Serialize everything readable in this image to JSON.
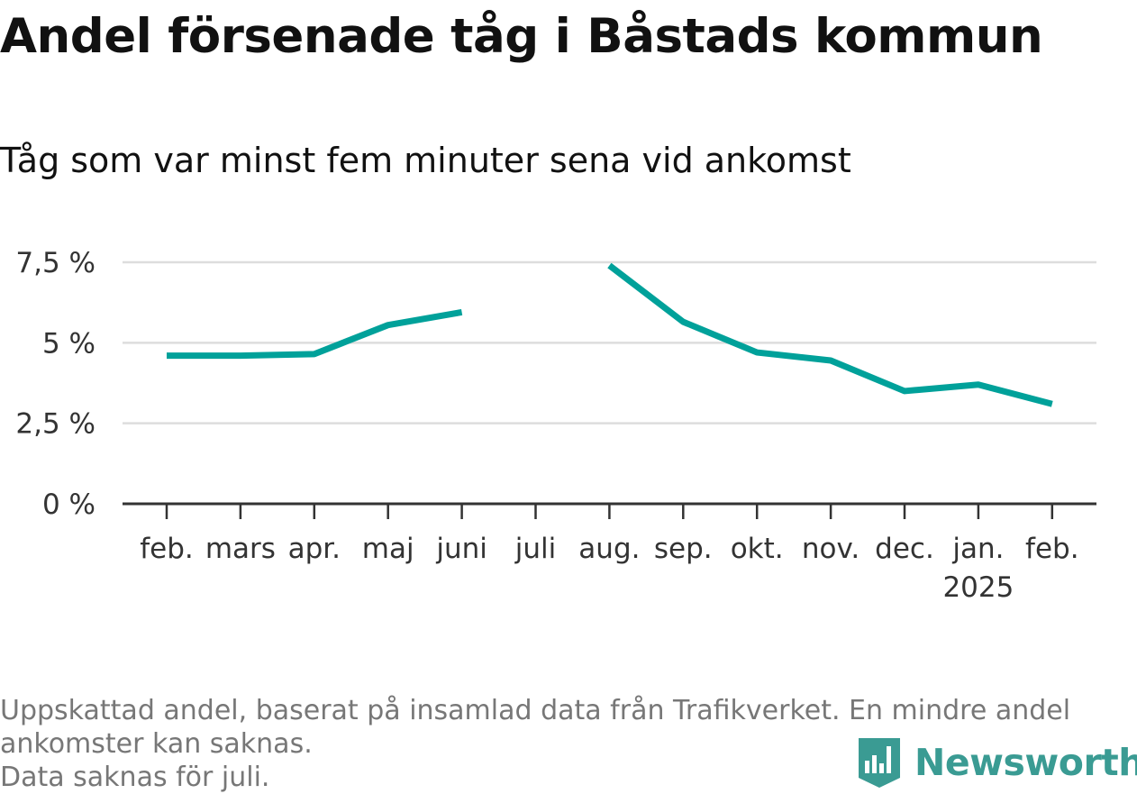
{
  "title": "Andel försenade tåg i Båstads kommun",
  "subtitle": "Tåg som var minst fem minuter sena vid ankomst",
  "footnote": {
    "line1": "Uppskattad andel, baserat på insamlad data från Trafikverket. En mindre andel ankomster kan saknas.",
    "line2": "Data saknas för juli."
  },
  "brand": {
    "name": "Newsworthy",
    "color": "#3a9b93"
  },
  "chart_data": {
    "type": "line",
    "categories": [
      "feb.",
      "mars",
      "apr.",
      "maj",
      "juni",
      "juli",
      "aug.",
      "sep.",
      "okt.",
      "nov.",
      "dec.",
      "jan.",
      "feb."
    ],
    "year_labels": [
      "",
      "",
      "",
      "",
      "",
      "",
      "",
      "",
      "",
      "",
      "",
      "2025",
      ""
    ],
    "series": [
      {
        "values": [
          4.6,
          4.6,
          4.65,
          5.55,
          5.95,
          null,
          7.4,
          5.65,
          4.7,
          4.45,
          3.5,
          3.7,
          3.1
        ],
        "color": "#00a19a"
      }
    ],
    "yticks": [
      0,
      2.5,
      5,
      7.5
    ],
    "ytick_labels": [
      "0 %",
      "2,5 %",
      "5 %",
      "7,5 %"
    ],
    "ylim": [
      0,
      7.5
    ],
    "grid": true,
    "legend": "none"
  }
}
